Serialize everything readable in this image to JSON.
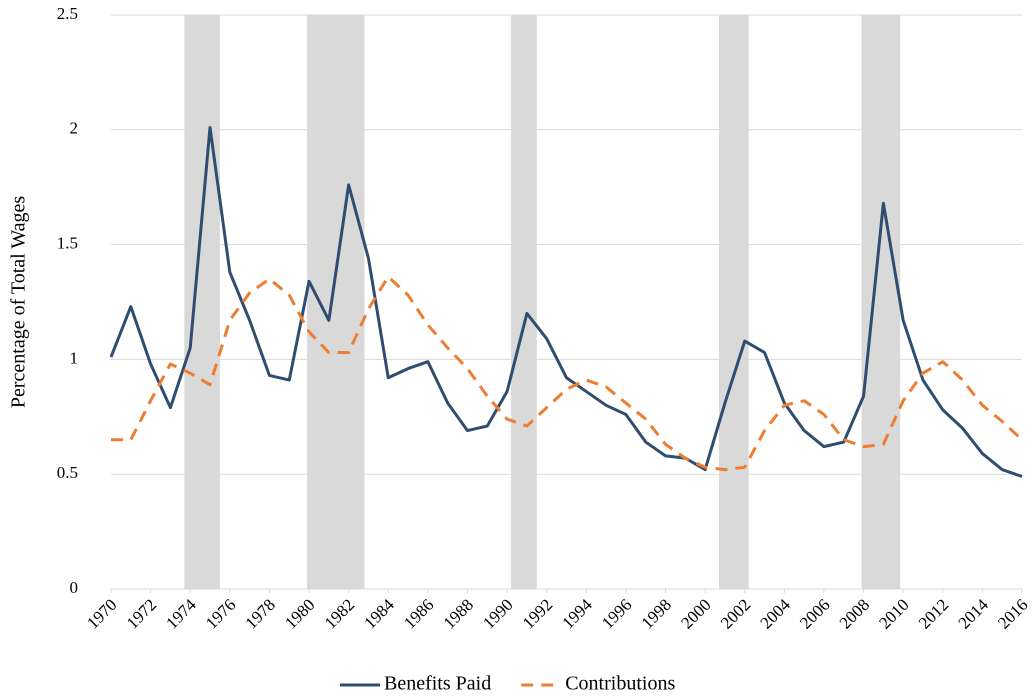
{
  "chart_data": {
    "type": "line",
    "ylabel": "Percentage  of Total Wages",
    "x": [
      1970,
      1971,
      1972,
      1973,
      1974,
      1975,
      1976,
      1977,
      1978,
      1979,
      1980,
      1981,
      1982,
      1983,
      1984,
      1985,
      1986,
      1987,
      1988,
      1989,
      1990,
      1991,
      1992,
      1993,
      1994,
      1995,
      1996,
      1997,
      1998,
      1999,
      2000,
      2001,
      2002,
      2003,
      2004,
      2005,
      2006,
      2007,
      2008,
      2009,
      2010,
      2011,
      2012,
      2013,
      2014,
      2015,
      2016
    ],
    "xlim": [
      1970,
      2016
    ],
    "xticks": [
      1970,
      1972,
      1974,
      1976,
      1978,
      1980,
      1982,
      1984,
      1986,
      1988,
      1990,
      1992,
      1994,
      1996,
      1998,
      2000,
      2002,
      2004,
      2006,
      2008,
      2010,
      2012,
      2014,
      2016
    ],
    "ylim": [
      0,
      2.5
    ],
    "yticks": [
      0,
      0.5,
      1,
      1.5,
      2,
      2.5
    ],
    "grid": true,
    "legend": "bottom",
    "shade_color": "#d9d9d9",
    "shaded_ranges": [
      [
        1973.7,
        1975.5
      ],
      [
        1979.9,
        1982.8
      ],
      [
        1990.2,
        1991.5
      ],
      [
        2000.7,
        2002.2
      ],
      [
        2007.9,
        2009.85
      ]
    ],
    "series": [
      {
        "name": "Benefits Paid",
        "color": "#2f4e6f",
        "line_style": "solid",
        "values": [
          1.01,
          1.23,
          0.98,
          0.79,
          1.05,
          2.01,
          1.38,
          1.17,
          0.93,
          0.91,
          1.34,
          1.17,
          1.76,
          1.44,
          0.92,
          0.96,
          0.99,
          0.81,
          0.69,
          0.71,
          0.86,
          1.2,
          1.09,
          0.92,
          0.86,
          0.8,
          0.76,
          0.64,
          0.58,
          0.57,
          0.52,
          0.81,
          1.08,
          1.03,
          0.81,
          0.69,
          0.62,
          0.64,
          0.84,
          1.68,
          1.17,
          0.91,
          0.78,
          0.7,
          0.59,
          0.52,
          0.49
        ]
      },
      {
        "name": "Contributions",
        "color": "#ed7d31",
        "line_style": "dashed",
        "values": [
          0.65,
          0.65,
          0.82,
          0.98,
          0.94,
          0.89,
          1.17,
          1.29,
          1.35,
          1.28,
          1.12,
          1.03,
          1.03,
          1.22,
          1.36,
          1.28,
          1.15,
          1.05,
          0.96,
          0.84,
          0.74,
          0.71,
          0.79,
          0.87,
          0.91,
          0.88,
          0.81,
          0.74,
          0.63,
          0.57,
          0.53,
          0.52,
          0.53,
          0.69,
          0.8,
          0.82,
          0.76,
          0.65,
          0.62,
          0.63,
          0.82,
          0.94,
          0.99,
          0.91,
          0.8,
          0.73,
          0.65
        ]
      }
    ]
  }
}
